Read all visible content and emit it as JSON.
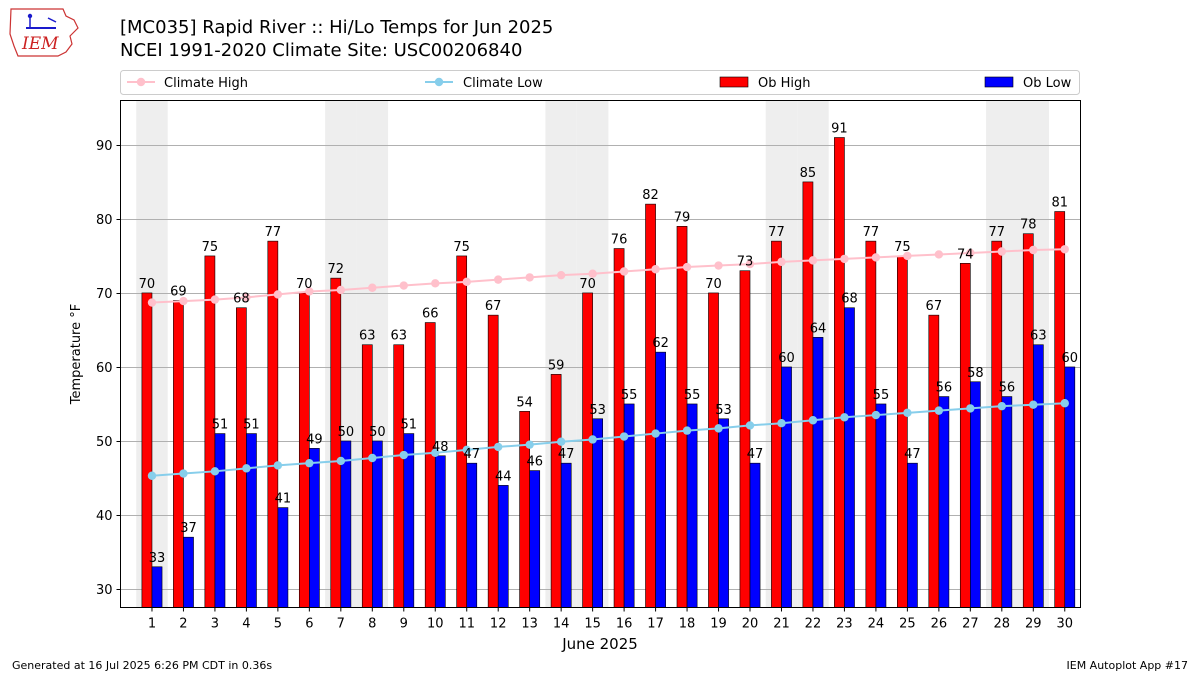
{
  "header": {
    "title_line1": "[MC035] Rapid River :: Hi/Lo Temps for Jun 2025",
    "title_line2": "NCEI 1991-2020 Climate Site: USC00206840",
    "logo_text": "IEM"
  },
  "footer": {
    "generated": "Generated at 16 Jul 2025 6:26 PM CDT in 0.36s",
    "app": "IEM Autoplot App #17"
  },
  "colors": {
    "ob_high": "#ff0000",
    "ob_low": "#0000ff",
    "climate_high": "#ffc0cb",
    "climate_low": "#87ceeb",
    "weekend_band": "#eeeeee",
    "grid": "#b0b0b0"
  },
  "chart_data": {
    "type": "bar",
    "xlabel": "June 2025",
    "ylabel": "Temperature °F",
    "ylim": [
      27.5,
      96
    ],
    "yticks": [
      30,
      40,
      50,
      60,
      70,
      80,
      90
    ],
    "grid": "horizontal",
    "legend_position": "top",
    "categories": [
      "1",
      "2",
      "3",
      "4",
      "5",
      "6",
      "7",
      "8",
      "9",
      "10",
      "11",
      "12",
      "13",
      "14",
      "15",
      "16",
      "17",
      "18",
      "19",
      "20",
      "21",
      "22",
      "23",
      "24",
      "25",
      "26",
      "27",
      "28",
      "29",
      "30"
    ],
    "shaded_days": [
      1,
      7,
      8,
      14,
      15,
      21,
      22,
      28,
      29
    ],
    "series": [
      {
        "name": "Ob High",
        "kind": "bar",
        "values": [
          70,
          69,
          75,
          68,
          77,
          70,
          72,
          63,
          63,
          66,
          75,
          67,
          54,
          59,
          70,
          76,
          82,
          79,
          70,
          73,
          77,
          85,
          91,
          77,
          75,
          67,
          74,
          77,
          78,
          81
        ]
      },
      {
        "name": "Ob Low",
        "kind": "bar",
        "values": [
          33,
          37,
          51,
          51,
          41,
          49,
          50,
          50,
          51,
          48,
          47,
          44,
          46,
          47,
          53,
          55,
          62,
          55,
          53,
          47,
          60,
          64,
          68,
          55,
          47,
          56,
          58,
          56,
          63,
          60
        ]
      },
      {
        "name": "Climate High",
        "kind": "line",
        "values": [
          68.7,
          68.9,
          69.1,
          69.4,
          69.8,
          70.2,
          70.4,
          70.7,
          71.0,
          71.3,
          71.5,
          71.8,
          72.1,
          72.4,
          72.6,
          72.9,
          73.2,
          73.5,
          73.7,
          73.9,
          74.2,
          74.4,
          74.6,
          74.8,
          75.0,
          75.2,
          75.4,
          75.6,
          75.8,
          75.9
        ]
      },
      {
        "name": "Climate Low",
        "kind": "line",
        "values": [
          45.3,
          45.6,
          45.9,
          46.3,
          46.7,
          47.0,
          47.3,
          47.7,
          48.1,
          48.4,
          48.8,
          49.2,
          49.5,
          49.9,
          50.2,
          50.6,
          51.0,
          51.4,
          51.7,
          52.1,
          52.4,
          52.8,
          53.2,
          53.5,
          53.8,
          54.1,
          54.4,
          54.7,
          54.9,
          55.1
        ]
      }
    ]
  }
}
